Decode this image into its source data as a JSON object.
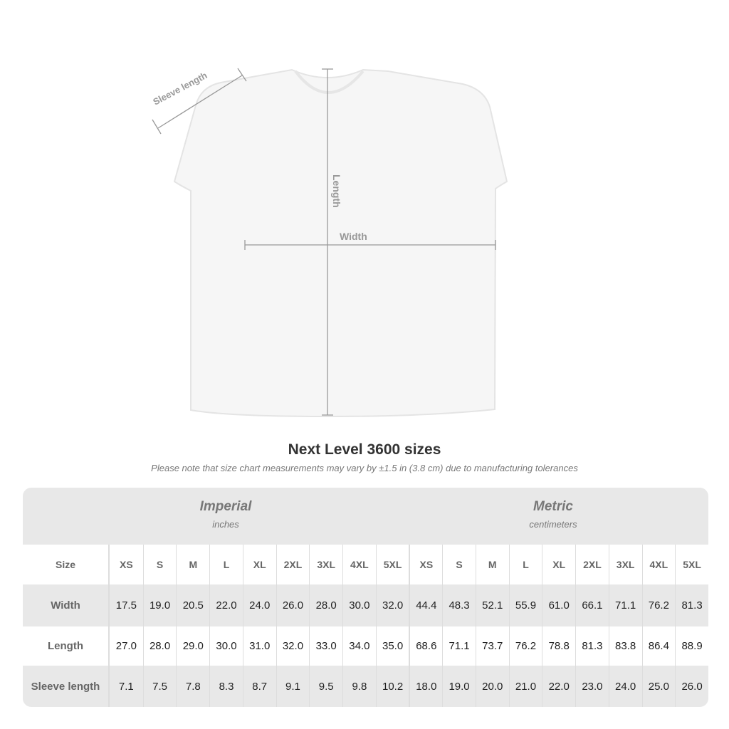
{
  "diagram": {
    "sleeve_label": "Sleeve length",
    "length_label": "Length",
    "width_label": "Width"
  },
  "title": "Next Level 3600 sizes",
  "note": "Please note that size chart measurements may vary by ±1.5 in (3.8 cm) due to manufacturing tolerances",
  "groups": [
    {
      "title": "Imperial",
      "unit": "inches"
    },
    {
      "title": "Metric",
      "unit": "centimeters"
    }
  ],
  "size_label": "Size",
  "sizes": [
    "XS",
    "S",
    "M",
    "L",
    "XL",
    "2XL",
    "3XL",
    "4XL",
    "5XL",
    "XS",
    "S",
    "M",
    "L",
    "XL",
    "2XL",
    "3XL",
    "4XL",
    "5XL"
  ],
  "rows": [
    {
      "label": "Width",
      "values": [
        "17.5",
        "19.0",
        "20.5",
        "22.0",
        "24.0",
        "26.0",
        "28.0",
        "30.0",
        "32.0",
        "44.4",
        "48.3",
        "52.1",
        "55.9",
        "61.0",
        "66.1",
        "71.1",
        "76.2",
        "81.3"
      ]
    },
    {
      "label": "Length",
      "values": [
        "27.0",
        "28.0",
        "29.0",
        "30.0",
        "31.0",
        "32.0",
        "33.0",
        "34.0",
        "35.0",
        "68.6",
        "71.1",
        "73.7",
        "76.2",
        "78.8",
        "81.3",
        "83.8",
        "86.4",
        "88.9"
      ]
    },
    {
      "label": "Sleeve length",
      "values": [
        "7.1",
        "7.5",
        "7.8",
        "8.3",
        "8.7",
        "9.1",
        "9.5",
        "9.8",
        "10.2",
        "18.0",
        "19.0",
        "20.0",
        "21.0",
        "22.0",
        "23.0",
        "24.0",
        "25.0",
        "26.0"
      ]
    }
  ]
}
